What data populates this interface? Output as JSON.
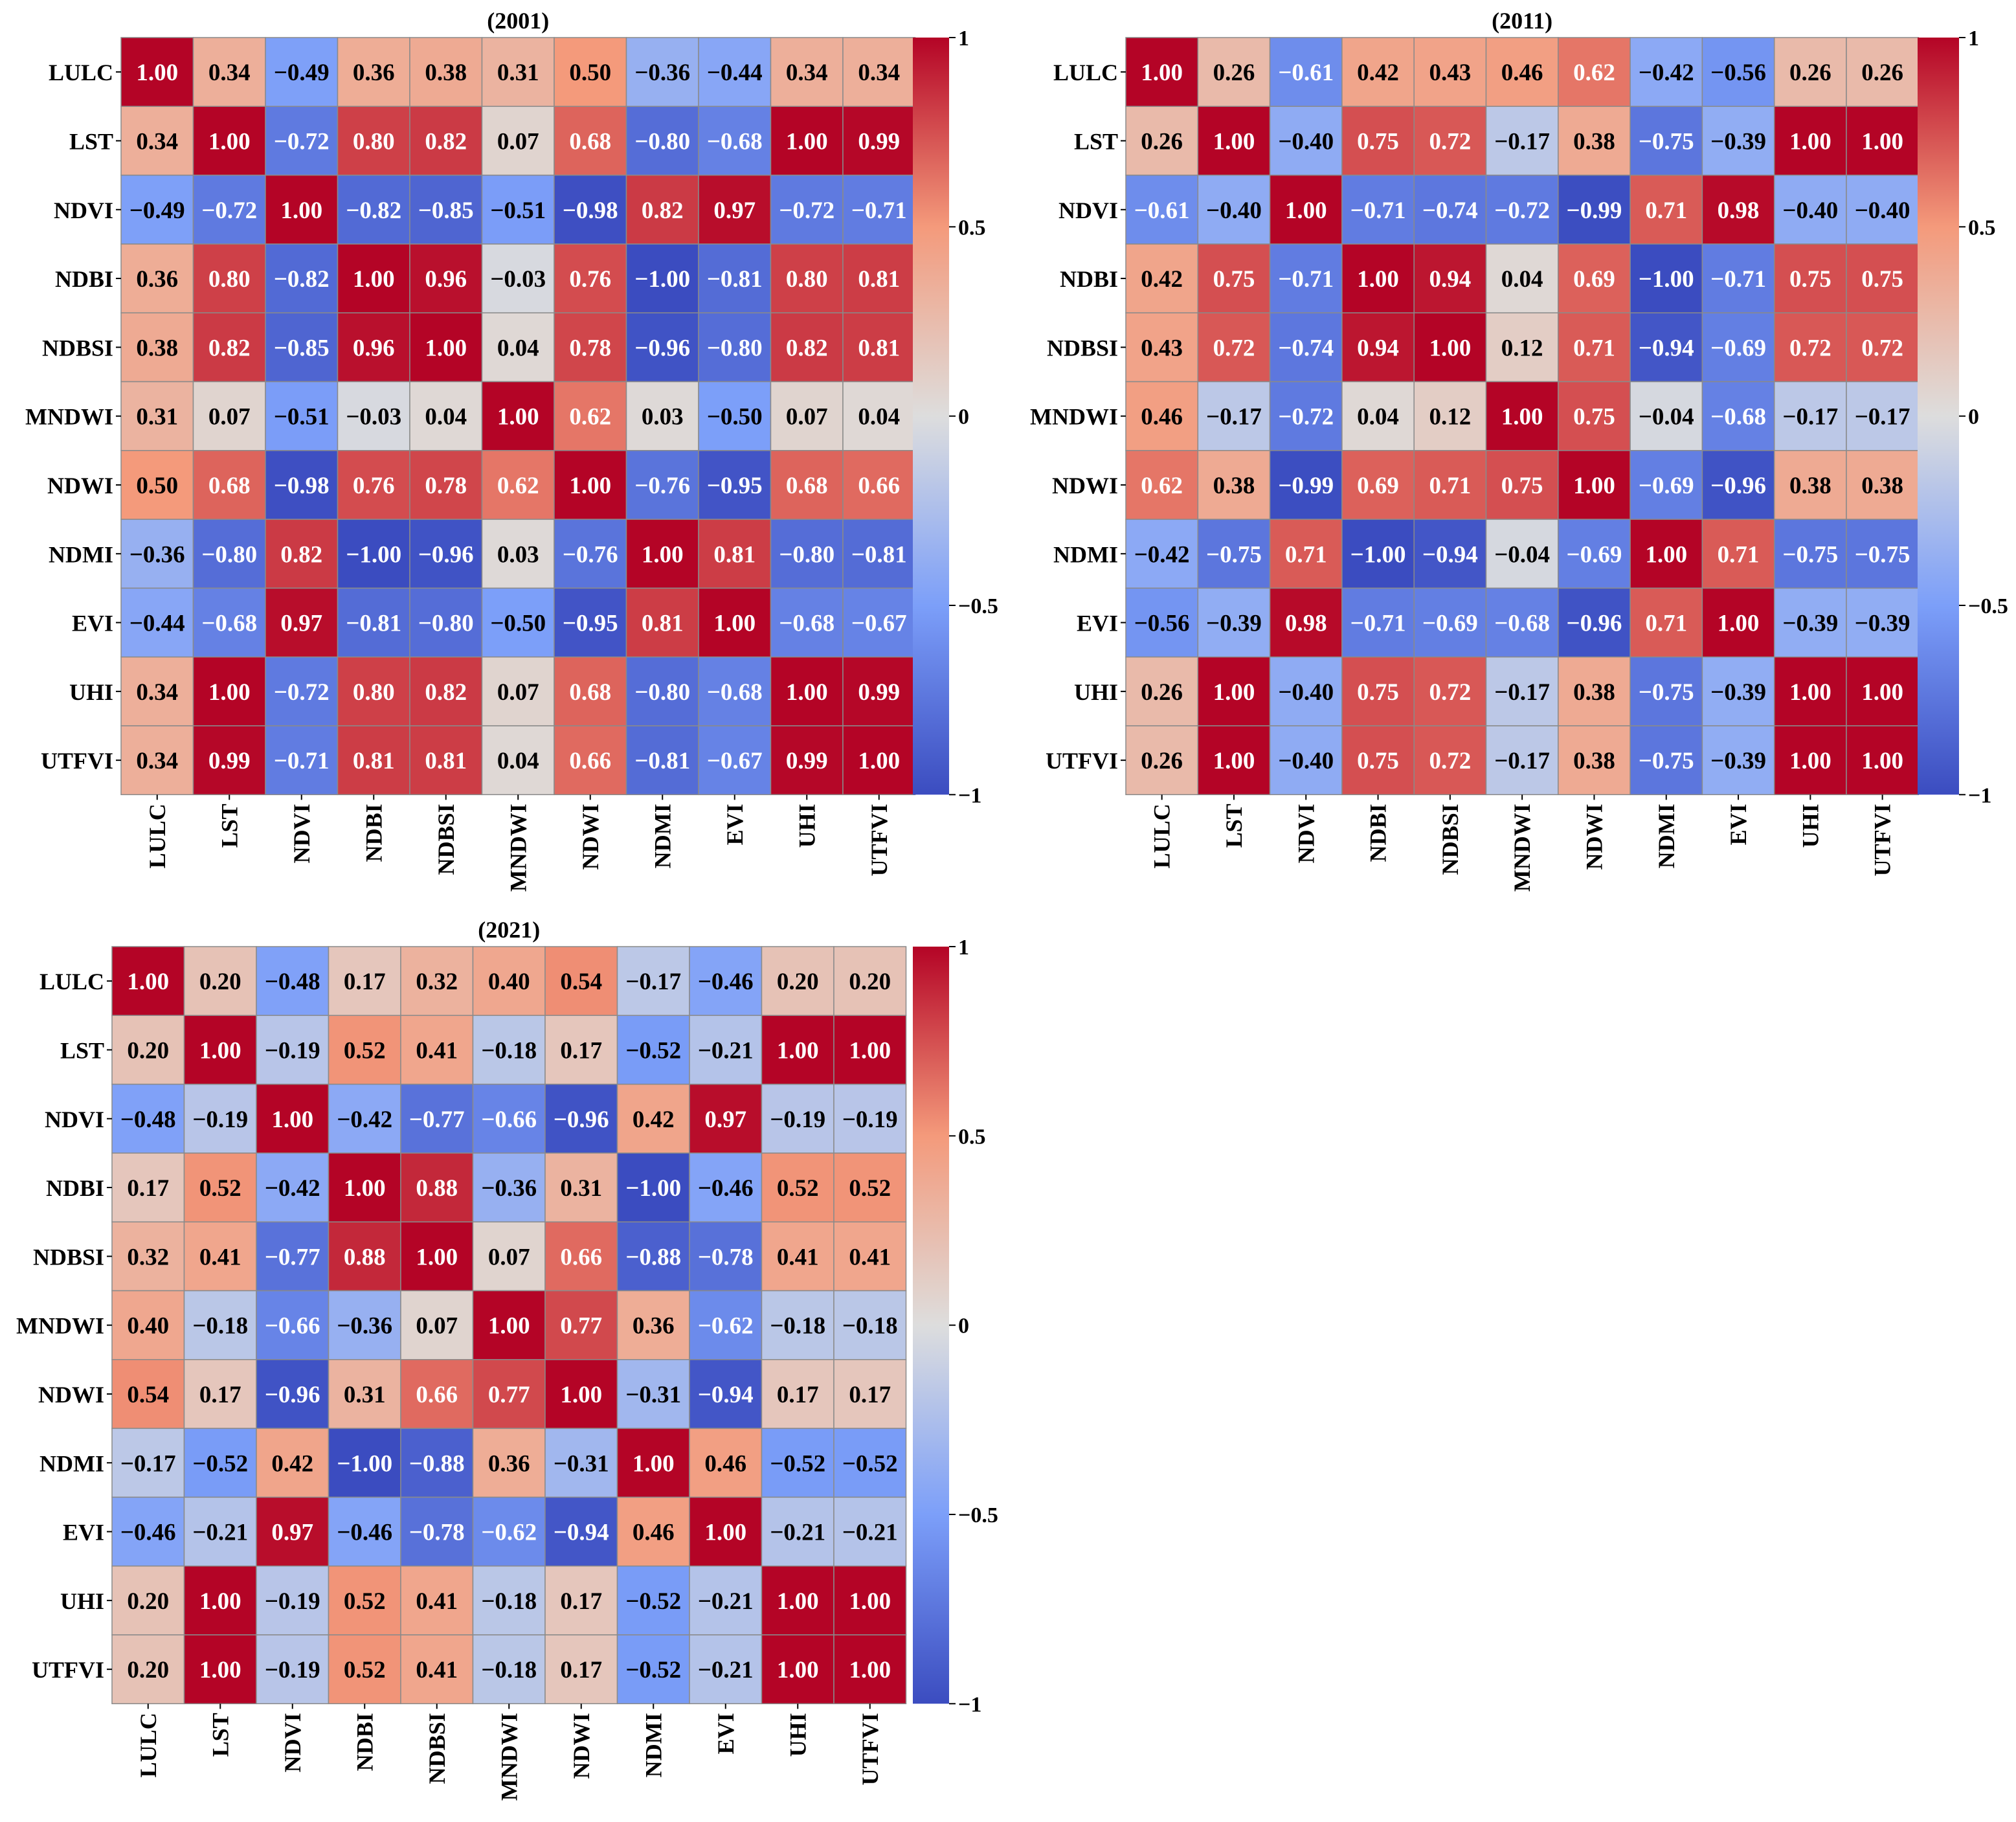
{
  "figure": {
    "variables": [
      "LULC",
      "LST",
      "NDVI",
      "NDBI",
      "NDBSI",
      "MNDWI",
      "NDWI",
      "NDMI",
      "EVI",
      "UHI",
      "UTFVI"
    ],
    "colorbar_ticks": [
      1,
      0.5,
      0,
      -0.5,
      -1
    ],
    "colorbar_tick_labels": [
      "1",
      "0.5",
      "0",
      "−0.5",
      "−1"
    ],
    "colormap": "coolwarm",
    "colormap_endpoints": {
      "low": "#3b4cc0",
      "mid": "#dddddd",
      "high": "#b40426"
    }
  },
  "chart_data": [
    {
      "type": "heatmap",
      "title": "(2001)",
      "rows": [
        "LULC",
        "LST",
        "NDVI",
        "NDBI",
        "NDBSI",
        "MNDWI",
        "NDWI",
        "NDMI",
        "EVI",
        "UHI",
        "UTFVI"
      ],
      "cols": [
        "LULC",
        "LST",
        "NDVI",
        "NDBI",
        "NDBSI",
        "MNDWI",
        "NDWI",
        "NDMI",
        "EVI",
        "UHI",
        "UTFVI"
      ],
      "vmin": -1,
      "vmax": 1,
      "values": [
        [
          1.0,
          0.34,
          -0.49,
          0.36,
          0.38,
          0.31,
          0.5,
          -0.36,
          -0.44,
          0.34,
          0.34
        ],
        [
          0.34,
          1.0,
          -0.72,
          0.8,
          0.82,
          0.07,
          0.68,
          -0.8,
          -0.68,
          1.0,
          0.99
        ],
        [
          -0.49,
          -0.72,
          1.0,
          -0.82,
          -0.85,
          -0.51,
          -0.98,
          0.82,
          0.97,
          -0.72,
          -0.71
        ],
        [
          0.36,
          0.8,
          -0.82,
          1.0,
          0.96,
          -0.03,
          0.76,
          -1.0,
          -0.81,
          0.8,
          0.81
        ],
        [
          0.38,
          0.82,
          -0.85,
          0.96,
          1.0,
          0.04,
          0.78,
          -0.96,
          -0.8,
          0.82,
          0.81
        ],
        [
          0.31,
          0.07,
          -0.51,
          -0.03,
          0.04,
          1.0,
          0.62,
          0.03,
          -0.5,
          0.07,
          0.04
        ],
        [
          0.5,
          0.68,
          -0.98,
          0.76,
          0.78,
          0.62,
          1.0,
          -0.76,
          -0.95,
          0.68,
          0.66
        ],
        [
          -0.36,
          -0.8,
          0.82,
          -1.0,
          -0.96,
          0.03,
          -0.76,
          1.0,
          0.81,
          -0.8,
          -0.81
        ],
        [
          -0.44,
          -0.68,
          0.97,
          -0.81,
          -0.8,
          -0.5,
          -0.95,
          0.81,
          1.0,
          -0.68,
          -0.67
        ],
        [
          0.34,
          1.0,
          -0.72,
          0.8,
          0.82,
          0.07,
          0.68,
          -0.8,
          -0.68,
          1.0,
          0.99
        ],
        [
          0.34,
          0.99,
          -0.71,
          0.81,
          0.81,
          0.04,
          0.66,
          -0.81,
          -0.67,
          0.99,
          1.0
        ]
      ]
    },
    {
      "type": "heatmap",
      "title": "(2011)",
      "rows": [
        "LULC",
        "LST",
        "NDVI",
        "NDBI",
        "NDBSI",
        "MNDWI",
        "NDWI",
        "NDMI",
        "EVI",
        "UHI",
        "UTFVI"
      ],
      "cols": [
        "LULC",
        "LST",
        "NDVI",
        "NDBI",
        "NDBSI",
        "MNDWI",
        "NDWI",
        "NDMI",
        "EVI",
        "UHI",
        "UTFVI"
      ],
      "vmin": -1,
      "vmax": 1,
      "values": [
        [
          1.0,
          0.26,
          -0.61,
          0.42,
          0.43,
          0.46,
          0.62,
          -0.42,
          -0.56,
          0.26,
          0.26
        ],
        [
          0.26,
          1.0,
          -0.4,
          0.75,
          0.72,
          -0.17,
          0.38,
          -0.75,
          -0.39,
          1.0,
          1.0
        ],
        [
          -0.61,
          -0.4,
          1.0,
          -0.71,
          -0.74,
          -0.72,
          -0.99,
          0.71,
          0.98,
          -0.4,
          -0.4
        ],
        [
          0.42,
          0.75,
          -0.71,
          1.0,
          0.94,
          0.04,
          0.69,
          -1.0,
          -0.71,
          0.75,
          0.75
        ],
        [
          0.43,
          0.72,
          -0.74,
          0.94,
          1.0,
          0.12,
          0.71,
          -0.94,
          -0.69,
          0.72,
          0.72
        ],
        [
          0.46,
          -0.17,
          -0.72,
          0.04,
          0.12,
          1.0,
          0.75,
          -0.04,
          -0.68,
          -0.17,
          -0.17
        ],
        [
          0.62,
          0.38,
          -0.99,
          0.69,
          0.71,
          0.75,
          1.0,
          -0.69,
          -0.96,
          0.38,
          0.38
        ],
        [
          -0.42,
          -0.75,
          0.71,
          -1.0,
          -0.94,
          -0.04,
          -0.69,
          1.0,
          0.71,
          -0.75,
          -0.75
        ],
        [
          -0.56,
          -0.39,
          0.98,
          -0.71,
          -0.69,
          -0.68,
          -0.96,
          0.71,
          1.0,
          -0.39,
          -0.39
        ],
        [
          0.26,
          1.0,
          -0.4,
          0.75,
          0.72,
          -0.17,
          0.38,
          -0.75,
          -0.39,
          1.0,
          1.0
        ],
        [
          0.26,
          1.0,
          -0.4,
          0.75,
          0.72,
          -0.17,
          0.38,
          -0.75,
          -0.39,
          1.0,
          1.0
        ]
      ]
    },
    {
      "type": "heatmap",
      "title": "(2021)",
      "rows": [
        "LULC",
        "LST",
        "NDVI",
        "NDBI",
        "NDBSI",
        "MNDWI",
        "NDWI",
        "NDMI",
        "EVI",
        "UHI",
        "UTFVI"
      ],
      "cols": [
        "LULC",
        "LST",
        "NDVI",
        "NDBI",
        "NDBSI",
        "MNDWI",
        "NDWI",
        "NDMI",
        "EVI",
        "UHI",
        "UTFVI"
      ],
      "vmin": -1,
      "vmax": 1,
      "values": [
        [
          1.0,
          0.2,
          -0.48,
          0.17,
          0.32,
          0.4,
          0.54,
          -0.17,
          -0.46,
          0.2,
          0.2
        ],
        [
          0.2,
          1.0,
          -0.19,
          0.52,
          0.41,
          -0.18,
          0.17,
          -0.52,
          -0.21,
          1.0,
          1.0
        ],
        [
          -0.48,
          -0.19,
          1.0,
          -0.42,
          -0.77,
          -0.66,
          -0.96,
          0.42,
          0.97,
          -0.19,
          -0.19
        ],
        [
          0.17,
          0.52,
          -0.42,
          1.0,
          0.88,
          -0.36,
          0.31,
          -1.0,
          -0.46,
          0.52,
          0.52
        ],
        [
          0.32,
          0.41,
          -0.77,
          0.88,
          1.0,
          0.07,
          0.66,
          -0.88,
          -0.78,
          0.41,
          0.41
        ],
        [
          0.4,
          -0.18,
          -0.66,
          -0.36,
          0.07,
          1.0,
          0.77,
          0.36,
          -0.62,
          -0.18,
          -0.18
        ],
        [
          0.54,
          0.17,
          -0.96,
          0.31,
          0.66,
          0.77,
          1.0,
          -0.31,
          -0.94,
          0.17,
          0.17
        ],
        [
          -0.17,
          -0.52,
          0.42,
          -1.0,
          -0.88,
          0.36,
          -0.31,
          1.0,
          0.46,
          -0.52,
          -0.52
        ],
        [
          -0.46,
          -0.21,
          0.97,
          -0.46,
          -0.78,
          -0.62,
          -0.94,
          0.46,
          1.0,
          -0.21,
          -0.21
        ],
        [
          0.2,
          1.0,
          -0.19,
          0.52,
          0.41,
          -0.18,
          0.17,
          -0.52,
          -0.21,
          1.0,
          1.0
        ],
        [
          0.2,
          1.0,
          -0.19,
          0.52,
          0.41,
          -0.18,
          0.17,
          -0.52,
          -0.21,
          1.0,
          1.0
        ]
      ]
    }
  ]
}
